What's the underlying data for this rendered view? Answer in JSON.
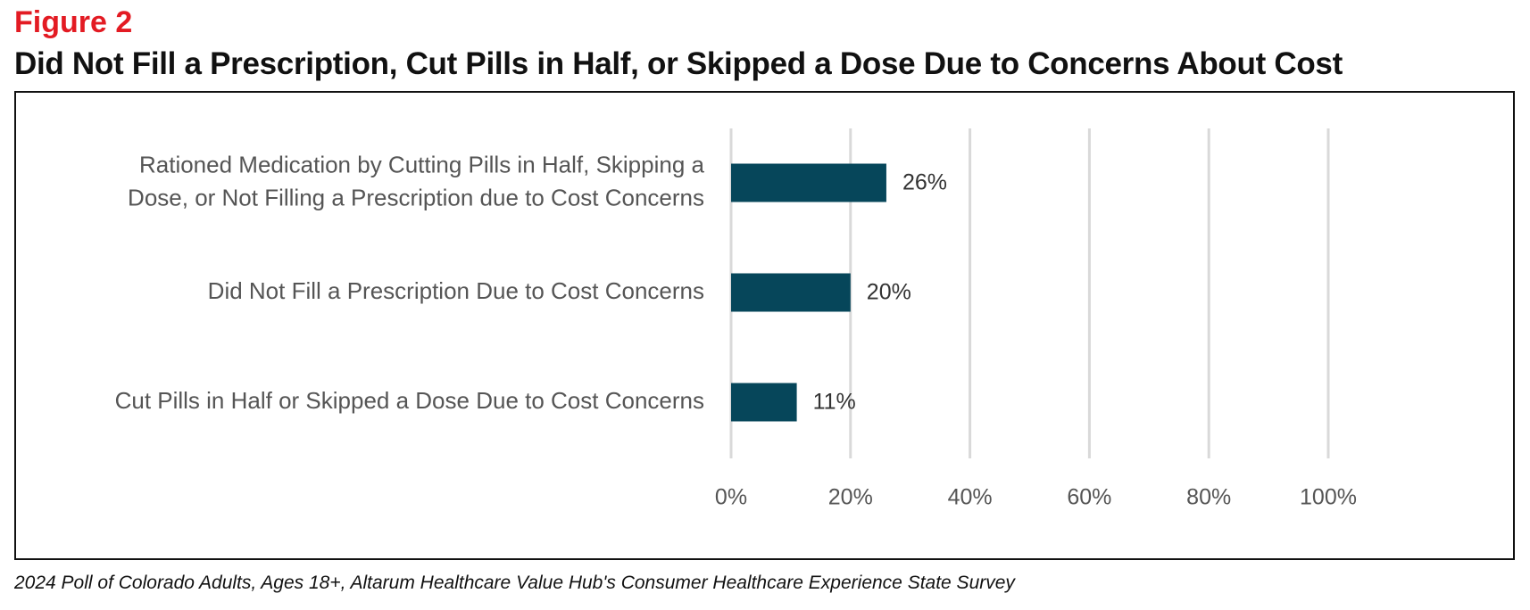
{
  "figure_label": "Figure 2",
  "title": "Did Not Fill a Prescription, Cut Pills in Half, or Skipped a Dose Due to Concerns About Cost",
  "source": "2024 Poll of Colorado Adults, Ages 18+, Altarum Healthcare Value Hub's Consumer Healthcare Experience State Survey",
  "colors": {
    "bar": "#06465a",
    "grid": "#d9d9d9",
    "accent": "#e31b23"
  },
  "chart_data": {
    "type": "bar",
    "orientation": "horizontal",
    "title": "Did Not Fill a Prescription, Cut Pills in Half, or Skipped a Dose Due to Concerns About Cost",
    "categories": [
      [
        "Rationed Medication by Cutting Pills in Half, Skipping a",
        "Dose, or Not Filling a Prescription due to Cost Concerns"
      ],
      [
        "Did Not Fill a Prescription Due to Cost Concerns"
      ],
      [
        "Cut Pills in Half or Skipped a Dose Due to Cost Concerns"
      ]
    ],
    "values": [
      26,
      20,
      11
    ],
    "value_labels": [
      "26%",
      "20%",
      "11%"
    ],
    "xlim": [
      0,
      100
    ],
    "ticks": [
      0,
      20,
      40,
      60,
      80,
      100
    ],
    "tick_labels": [
      "0%",
      "20%",
      "40%",
      "60%",
      "80%",
      "100%"
    ],
    "xlabel": "",
    "ylabel": "",
    "grid": true
  }
}
